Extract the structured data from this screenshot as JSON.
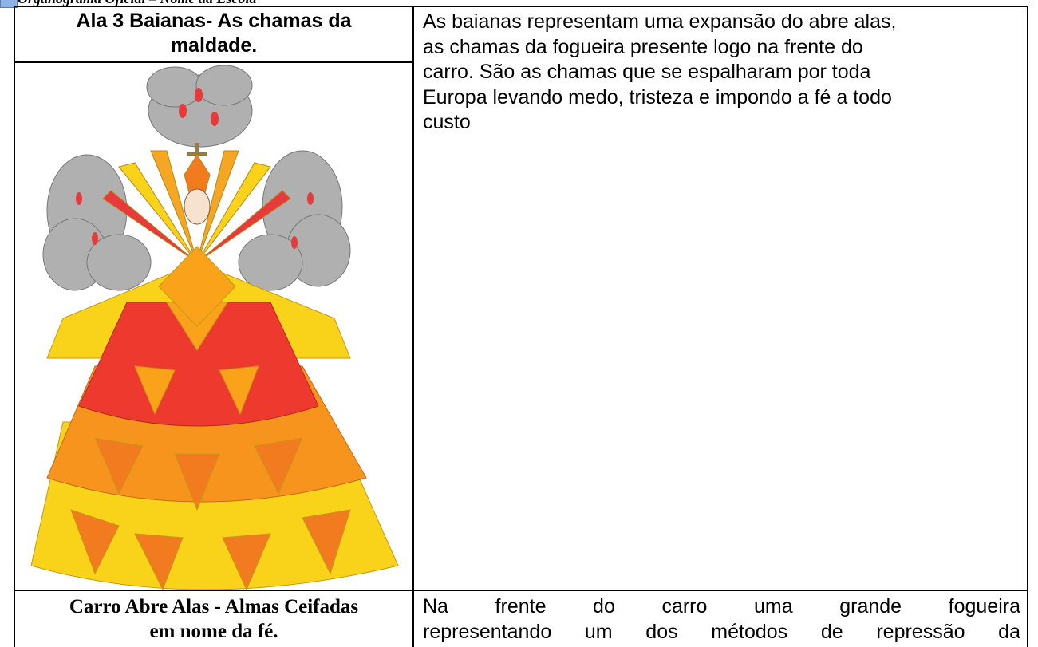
{
  "header": {
    "title": "Organograma Oficial – Nome da Escola"
  },
  "table": {
    "rows": [
      {
        "title_lines": [
          "Ala 3 Baianas- As chamas da",
          "maldade."
        ],
        "description_lines": [
          "As baianas representam uma expansão do abre alas,",
          "as chamas da fogueira presente logo na frente do",
          "carro. São as chamas que se espalharam por toda",
          "Europa levando medo, tristeza e impondo a fé a todo",
          "custo"
        ]
      },
      {
        "title_lines": [
          "Carro Abre Alas - Almas Ceifadas",
          "em nome da fé."
        ],
        "description_lines": [
          "Na frente do carro uma grande fogueira",
          "representando um dos métodos de repressão da"
        ]
      }
    ]
  }
}
